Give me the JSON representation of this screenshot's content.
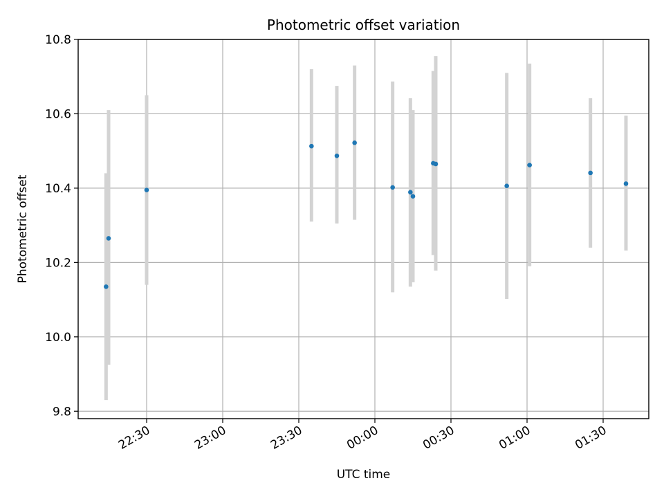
{
  "chart_data": {
    "type": "scatter",
    "title": "Photometric offset variation",
    "xlabel": "UTC time",
    "ylabel": "Photometric offset",
    "grid": true,
    "legend": "none",
    "x_tick_labels": [
      "22:30",
      "23:00",
      "23:30",
      "00:00",
      "00:30",
      "01:00",
      "01:30"
    ],
    "x_tick_times": [
      "22:30",
      "23:00",
      "23:30",
      "00:00",
      "00:30",
      "01:00",
      "01:30"
    ],
    "y_tick_labels": [
      "9.8",
      "10.0",
      "10.2",
      "10.4",
      "10.6",
      "10.8"
    ],
    "xlim": [
      "22:03",
      "01:48"
    ],
    "ylim": [
      9.78,
      10.8
    ],
    "point_color": "#1f77b4",
    "errorbar_color": "#d3d3d3",
    "series": [
      {
        "points": [
          {
            "t": "22:14",
            "y": 10.135,
            "ylo": 9.83,
            "yhi": 10.44
          },
          {
            "t": "22:15",
            "y": 10.265,
            "ylo": 9.925,
            "yhi": 10.61
          },
          {
            "t": "22:30",
            "y": 10.395,
            "ylo": 10.14,
            "yhi": 10.65
          },
          {
            "t": "23:35",
            "y": 10.513,
            "ylo": 10.31,
            "yhi": 10.72
          },
          {
            "t": "23:45",
            "y": 10.487,
            "ylo": 10.305,
            "yhi": 10.675
          },
          {
            "t": "23:52",
            "y": 10.522,
            "ylo": 10.315,
            "yhi": 10.73
          },
          {
            "t": "00:07",
            "y": 10.402,
            "ylo": 10.12,
            "yhi": 10.687
          },
          {
            "t": "00:14",
            "y": 10.389,
            "ylo": 10.135,
            "yhi": 10.642
          },
          {
            "t": "00:15",
            "y": 10.378,
            "ylo": 10.147,
            "yhi": 10.61
          },
          {
            "t": "00:23",
            "y": 10.467,
            "ylo": 10.22,
            "yhi": 10.715
          },
          {
            "t": "00:24",
            "y": 10.465,
            "ylo": 10.178,
            "yhi": 10.755
          },
          {
            "t": "00:52",
            "y": 10.406,
            "ylo": 10.102,
            "yhi": 10.71
          },
          {
            "t": "01:01",
            "y": 10.462,
            "ylo": 10.19,
            "yhi": 10.735
          },
          {
            "t": "01:25",
            "y": 10.441,
            "ylo": 10.24,
            "yhi": 10.642
          },
          {
            "t": "01:39",
            "y": 10.412,
            "ylo": 10.232,
            "yhi": 10.595
          }
        ]
      }
    ]
  }
}
